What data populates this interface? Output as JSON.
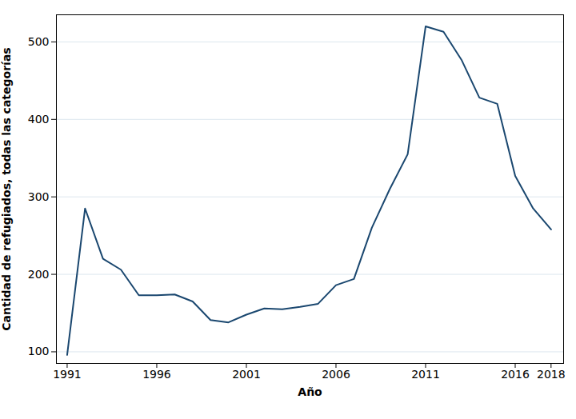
{
  "chart_data": {
    "type": "line",
    "x_label": "Año",
    "y_label": "Cantidad de refugiados, todas las categorías",
    "x": [
      1991,
      1992,
      1993,
      1994,
      1995,
      1996,
      1997,
      1998,
      1999,
      2000,
      2001,
      2002,
      2003,
      2004,
      2005,
      2006,
      2007,
      2008,
      2009,
      2010,
      2011,
      2012,
      2013,
      2014,
      2015,
      2016,
      2017,
      2018
    ],
    "values": [
      96,
      285,
      220,
      206,
      173,
      173,
      174,
      165,
      141,
      138,
      148,
      156,
      155,
      158,
      162,
      186,
      194,
      260,
      310,
      355,
      520,
      513,
      477,
      428,
      420,
      327,
      285,
      258
    ],
    "color": "#1a476f",
    "xlim": [
      1990.4,
      2018.7
    ],
    "xticks": [
      1991,
      1996,
      2001,
      2006,
      2011,
      2016,
      2018
    ],
    "ylim": [
      85,
      535
    ],
    "yticks": [
      100,
      200,
      300,
      400,
      500
    ],
    "grid": true
  }
}
